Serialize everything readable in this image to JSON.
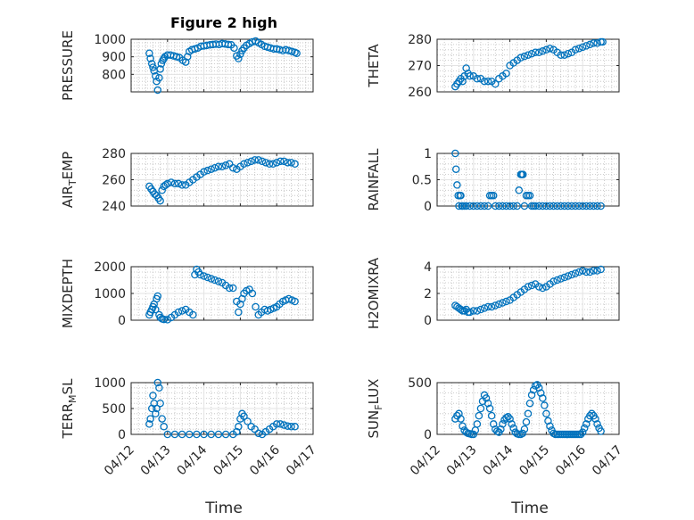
{
  "figure": {
    "title": "Figure 2 high",
    "x_tick_labels": [
      "04/12",
      "04/13",
      "04/14",
      "04/15",
      "04/16",
      "04/17"
    ],
    "x_label": "Time",
    "marker_color": "#0072BD"
  },
  "chart_data": [
    {
      "type": "scatter",
      "ylabel": "PRESSURE",
      "ylim": [
        700,
        1000
      ],
      "yticks": [
        800,
        900,
        1000
      ],
      "grid": true,
      "x": [
        0.5,
        0.53,
        0.57,
        0.6,
        0.63,
        0.67,
        0.7,
        0.73,
        0.77,
        0.8,
        0.83,
        0.87,
        0.9,
        0.93,
        1.0,
        1.08,
        1.17,
        1.25,
        1.33,
        1.42,
        1.5,
        1.55,
        1.6,
        1.67,
        1.75,
        1.83,
        1.92,
        2.0,
        2.08,
        2.17,
        2.25,
        2.33,
        2.42,
        2.5,
        2.58,
        2.67,
        2.75,
        2.83,
        2.9,
        2.95,
        3.0,
        3.05,
        3.1,
        3.17,
        3.25,
        3.33,
        3.42,
        3.5,
        3.58,
        3.67,
        3.75,
        3.83,
        3.92,
        4.0,
        4.08,
        4.17,
        4.25,
        4.33,
        4.42,
        4.5,
        4.55
      ],
      "y": [
        920,
        890,
        860,
        840,
        820,
        790,
        760,
        710,
        780,
        830,
        860,
        880,
        890,
        900,
        910,
        910,
        905,
        900,
        895,
        880,
        870,
        900,
        930,
        940,
        945,
        950,
        960,
        962,
        965,
        968,
        970,
        972,
        970,
        975,
        973,
        970,
        968,
        950,
        905,
        890,
        915,
        935,
        950,
        965,
        975,
        985,
        990,
        980,
        970,
        960,
        955,
        950,
        945,
        945,
        940,
        935,
        940,
        935,
        930,
        925,
        920
      ]
    },
    {
      "type": "scatter",
      "ylabel": "THETA",
      "ylim": [
        260,
        280
      ],
      "yticks": [
        260,
        270,
        280
      ],
      "grid": true,
      "x": [
        0.5,
        0.55,
        0.6,
        0.65,
        0.7,
        0.75,
        0.8,
        0.85,
        0.9,
        1.0,
        1.1,
        1.2,
        1.3,
        1.4,
        1.5,
        1.6,
        1.7,
        1.8,
        1.9,
        2.0,
        2.1,
        2.2,
        2.3,
        2.4,
        2.5,
        2.6,
        2.7,
        2.8,
        2.9,
        3.0,
        3.1,
        3.2,
        3.3,
        3.4,
        3.5,
        3.6,
        3.7,
        3.8,
        3.9,
        4.0,
        4.1,
        4.2,
        4.3,
        4.4,
        4.5,
        4.55
      ],
      "y": [
        262,
        263,
        264,
        265,
        264,
        266,
        269,
        267,
        266,
        266,
        265,
        265,
        264,
        264,
        264,
        263,
        265,
        266,
        267,
        270,
        271,
        272,
        273,
        273.5,
        274,
        274.5,
        275,
        275,
        275.5,
        276,
        276.5,
        276,
        275,
        274,
        274,
        274.5,
        275,
        276,
        276.5,
        277,
        277.5,
        278,
        278.5,
        278.5,
        279,
        279
      ]
    },
    {
      "type": "scatter",
      "ylabel": "AIR_TEMP",
      "ylim": [
        240,
        280
      ],
      "yticks": [
        240,
        260,
        280
      ],
      "grid": true,
      "x": [
        0.5,
        0.55,
        0.6,
        0.65,
        0.7,
        0.75,
        0.8,
        0.85,
        0.9,
        0.95,
        1.0,
        1.1,
        1.2,
        1.3,
        1.4,
        1.5,
        1.6,
        1.7,
        1.8,
        1.9,
        2.0,
        2.1,
        2.2,
        2.3,
        2.4,
        2.5,
        2.6,
        2.7,
        2.8,
        2.9,
        3.0,
        3.1,
        3.2,
        3.3,
        3.4,
        3.5,
        3.6,
        3.7,
        3.8,
        3.9,
        4.0,
        4.1,
        4.2,
        4.3,
        4.4,
        4.5
      ],
      "y": [
        255,
        253,
        251,
        249,
        248,
        246,
        244,
        252,
        255,
        256,
        257,
        258,
        257,
        257,
        256,
        256,
        258,
        260,
        262,
        264,
        266,
        267,
        268,
        269,
        270,
        270,
        271,
        272,
        269,
        268,
        270,
        272,
        273,
        274,
        275,
        275,
        274,
        273,
        272,
        272,
        273,
        274,
        274,
        273,
        273,
        272
      ]
    },
    {
      "type": "scatter",
      "ylabel": "RAINFALL",
      "ylim": [
        0,
        1
      ],
      "yticks": [
        0,
        0.5,
        1
      ],
      "grid": true,
      "x": [
        0.5,
        0.52,
        0.55,
        0.58,
        0.6,
        0.63,
        0.65,
        0.68,
        0.7,
        0.75,
        0.8,
        0.9,
        1.0,
        1.1,
        1.2,
        1.3,
        1.4,
        1.45,
        1.5,
        1.55,
        1.6,
        1.7,
        1.8,
        1.9,
        2.0,
        2.1,
        2.2,
        2.25,
        2.3,
        2.33,
        2.36,
        2.4,
        2.45,
        2.5,
        2.55,
        2.6,
        2.65,
        2.7,
        2.8,
        2.9,
        3.0,
        3.1,
        3.2,
        3.3,
        3.4,
        3.5,
        3.6,
        3.7,
        3.8,
        3.9,
        4.0,
        4.1,
        4.2,
        4.3,
        4.4,
        4.5
      ],
      "y": [
        1.0,
        0.7,
        0.4,
        0.2,
        0.0,
        0.2,
        0.2,
        0.0,
        0.0,
        0.0,
        0.0,
        0.0,
        0.0,
        0.0,
        0.0,
        0.0,
        0.0,
        0.2,
        0.2,
        0.2,
        0.0,
        0.0,
        0.0,
        0.0,
        0.0,
        0.0,
        0.0,
        0.3,
        0.6,
        0.6,
        0.6,
        0.0,
        0.2,
        0.2,
        0.2,
        0.0,
        0.0,
        0.0,
        0.0,
        0.0,
        0.0,
        0.0,
        0.0,
        0.0,
        0.0,
        0.0,
        0.0,
        0.0,
        0.0,
        0.0,
        0.0,
        0.0,
        0.0,
        0.0,
        0.0,
        0.0
      ]
    },
    {
      "type": "scatter",
      "ylabel": "MIXDEPTH",
      "ylim": [
        0,
        2000
      ],
      "yticks": [
        0,
        1000,
        2000
      ],
      "grid": true,
      "x": [
        0.5,
        0.53,
        0.57,
        0.6,
        0.63,
        0.67,
        0.7,
        0.73,
        0.77,
        0.8,
        0.85,
        0.9,
        1.0,
        1.1,
        1.2,
        1.3,
        1.4,
        1.5,
        1.6,
        1.7,
        1.75,
        1.8,
        1.85,
        1.9,
        2.0,
        2.1,
        2.2,
        2.3,
        2.4,
        2.5,
        2.6,
        2.7,
        2.8,
        2.9,
        2.95,
        3.0,
        3.05,
        3.1,
        3.17,
        3.25,
        3.33,
        3.42,
        3.5,
        3.58,
        3.67,
        3.75,
        3.83,
        3.92,
        4.0,
        4.08,
        4.17,
        4.25,
        4.33,
        4.42,
        4.5
      ],
      "y": [
        200,
        300,
        400,
        500,
        600,
        400,
        800,
        900,
        200,
        100,
        50,
        30,
        20,
        100,
        200,
        300,
        350,
        400,
        300,
        200,
        1700,
        1900,
        1800,
        1700,
        1650,
        1600,
        1550,
        1500,
        1450,
        1400,
        1300,
        1200,
        1200,
        700,
        300,
        600,
        800,
        1000,
        1100,
        1150,
        1000,
        500,
        200,
        300,
        400,
        350,
        400,
        450,
        500,
        600,
        700,
        750,
        800,
        750,
        700
      ]
    },
    {
      "type": "scatter",
      "ylabel": "H2OMIXRA",
      "ylim": [
        0,
        4
      ],
      "yticks": [
        0,
        2,
        4
      ],
      "grid": true,
      "x": [
        0.5,
        0.55,
        0.6,
        0.65,
        0.7,
        0.75,
        0.8,
        0.85,
        0.9,
        1.0,
        1.1,
        1.2,
        1.3,
        1.4,
        1.5,
        1.6,
        1.7,
        1.8,
        1.9,
        2.0,
        2.1,
        2.2,
        2.3,
        2.4,
        2.5,
        2.6,
        2.7,
        2.8,
        2.9,
        3.0,
        3.1,
        3.2,
        3.3,
        3.4,
        3.5,
        3.6,
        3.7,
        3.8,
        3.9,
        4.0,
        4.1,
        4.2,
        4.3,
        4.4,
        4.5
      ],
      "y": [
        1.1,
        1.0,
        0.9,
        0.8,
        0.7,
        0.7,
        0.8,
        0.6,
        0.6,
        0.7,
        0.7,
        0.8,
        0.9,
        1.0,
        1.0,
        1.1,
        1.2,
        1.3,
        1.4,
        1.5,
        1.7,
        1.9,
        2.1,
        2.3,
        2.5,
        2.6,
        2.7,
        2.5,
        2.4,
        2.5,
        2.7,
        2.9,
        3.0,
        3.1,
        3.2,
        3.3,
        3.4,
        3.5,
        3.6,
        3.7,
        3.6,
        3.6,
        3.7,
        3.7,
        3.8
      ]
    },
    {
      "type": "scatter",
      "ylabel": "TERR_MSL",
      "ylim": [
        0,
        1000
      ],
      "yticks": [
        0,
        500,
        1000
      ],
      "grid": true,
      "x": [
        0.5,
        0.53,
        0.57,
        0.6,
        0.63,
        0.67,
        0.7,
        0.73,
        0.77,
        0.8,
        0.85,
        0.9,
        1.0,
        1.2,
        1.4,
        1.6,
        1.8,
        2.0,
        2.2,
        2.4,
        2.6,
        2.8,
        2.9,
        2.95,
        3.0,
        3.05,
        3.1,
        3.2,
        3.3,
        3.4,
        3.5,
        3.6,
        3.7,
        3.8,
        3.9,
        4.0,
        4.1,
        4.2,
        4.3,
        4.4,
        4.5
      ],
      "y": [
        200,
        300,
        500,
        750,
        600,
        400,
        500,
        1000,
        900,
        600,
        300,
        150,
        0,
        0,
        0,
        0,
        0,
        0,
        0,
        0,
        0,
        0,
        50,
        150,
        300,
        400,
        350,
        250,
        150,
        100,
        20,
        0,
        50,
        100,
        150,
        200,
        200,
        180,
        160,
        150,
        150
      ]
    },
    {
      "type": "scatter",
      "ylabel": "SUN_FLUX",
      "ylim": [
        0,
        500
      ],
      "yticks": [
        0,
        500
      ],
      "grid": true,
      "x": [
        0.5,
        0.55,
        0.6,
        0.65,
        0.7,
        0.75,
        0.8,
        0.85,
        0.9,
        0.95,
        1.0,
        1.05,
        1.1,
        1.15,
        1.2,
        1.25,
        1.3,
        1.35,
        1.4,
        1.45,
        1.5,
        1.55,
        1.6,
        1.65,
        1.7,
        1.75,
        1.8,
        1.85,
        1.9,
        1.95,
        2.0,
        2.05,
        2.1,
        2.15,
        2.2,
        2.25,
        2.3,
        2.35,
        2.4,
        2.45,
        2.5,
        2.55,
        2.6,
        2.65,
        2.7,
        2.75,
        2.8,
        2.85,
        2.9,
        2.95,
        3.0,
        3.05,
        3.1,
        3.15,
        3.2,
        3.25,
        3.3,
        3.35,
        3.4,
        3.45,
        3.5,
        3.55,
        3.6,
        3.65,
        3.7,
        3.75,
        3.8,
        3.85,
        3.9,
        3.95,
        4.0,
        4.05,
        4.1,
        4.15,
        4.2,
        4.25,
        4.3,
        4.35,
        4.4,
        4.45,
        4.5
      ],
      "y": [
        150,
        180,
        200,
        150,
        80,
        40,
        20,
        10,
        5,
        0,
        0,
        40,
        100,
        180,
        250,
        320,
        380,
        350,
        300,
        250,
        180,
        100,
        50,
        30,
        20,
        50,
        100,
        140,
        160,
        170,
        150,
        100,
        60,
        20,
        5,
        0,
        0,
        10,
        50,
        120,
        200,
        300,
        380,
        430,
        470,
        480,
        450,
        400,
        350,
        280,
        200,
        130,
        80,
        40,
        10,
        0,
        0,
        0,
        0,
        0,
        0,
        0,
        0,
        0,
        0,
        0,
        0,
        0,
        0,
        0,
        20,
        60,
        100,
        150,
        180,
        200,
        180,
        150,
        100,
        60,
        30
      ]
    }
  ]
}
